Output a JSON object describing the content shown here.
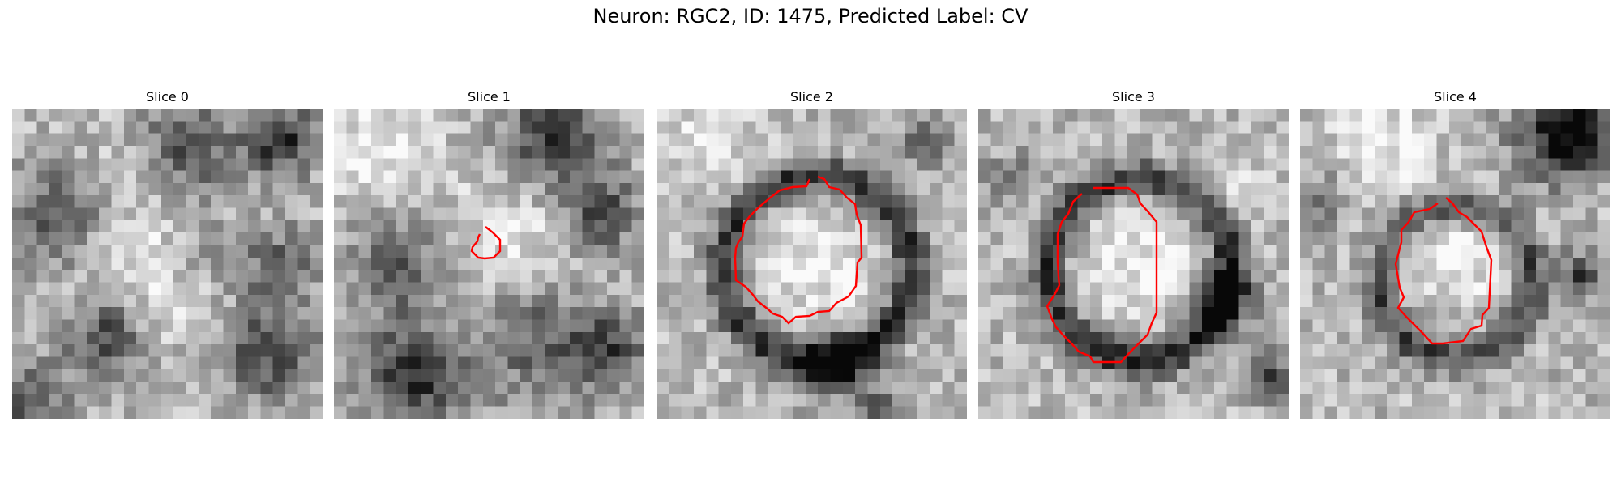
{
  "title": "Neuron: RGC2, ID: 1475, Predicted Label: CV",
  "panels": [
    {
      "title": "Slice 0"
    },
    {
      "title": "Slice 1"
    },
    {
      "title": "Slice 2"
    },
    {
      "title": "Slice 3"
    },
    {
      "title": "Slice 4"
    }
  ],
  "contour_color": "#ff0000"
}
